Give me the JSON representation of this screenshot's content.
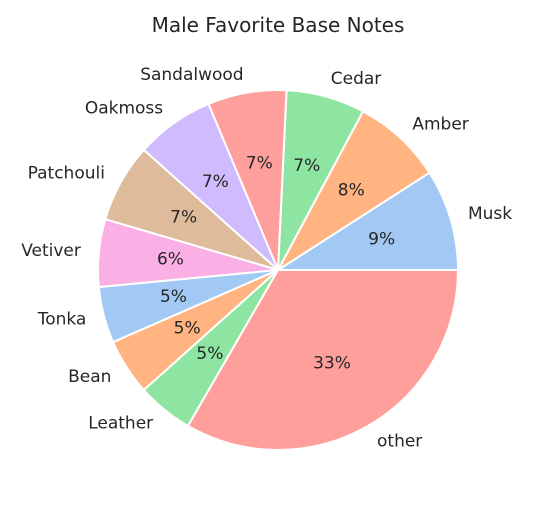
{
  "chart_data": {
    "type": "pie",
    "title": "Male Favorite Base Notes",
    "start_angle_deg": 0,
    "direction": "counterclockwise",
    "slices": [
      {
        "label": "Musk",
        "pct_label": "9%",
        "value": 9,
        "color": "#a1c9f4"
      },
      {
        "label": "Amber",
        "pct_label": "8%",
        "value": 8,
        "color": "#ffb482"
      },
      {
        "label": "Cedar",
        "pct_label": "7%",
        "value": 7,
        "color": "#8de5a1"
      },
      {
        "label": "Sandalwood",
        "pct_label": "7%",
        "value": 7,
        "color": "#ff9f9b"
      },
      {
        "label": "Oakmoss",
        "pct_label": "7%",
        "value": 7,
        "color": "#d0bbff"
      },
      {
        "label": "Patchouli",
        "pct_label": "7%",
        "value": 7,
        "color": "#debb9b"
      },
      {
        "label": "Vetiver",
        "pct_label": "6%",
        "value": 6,
        "color": "#fab0e4"
      },
      {
        "label": "Tonka",
        "pct_label": "5%",
        "value": 5,
        "color": "#a1c9f4"
      },
      {
        "label": "Bean",
        "pct_label": "5%",
        "value": 5,
        "color": "#ffb482"
      },
      {
        "label": "Leather",
        "pct_label": "5%",
        "value": 5,
        "color": "#8de5a1"
      },
      {
        "label": "other",
        "pct_label": "33%",
        "value": 33,
        "color": "#ff9f9b"
      }
    ]
  }
}
